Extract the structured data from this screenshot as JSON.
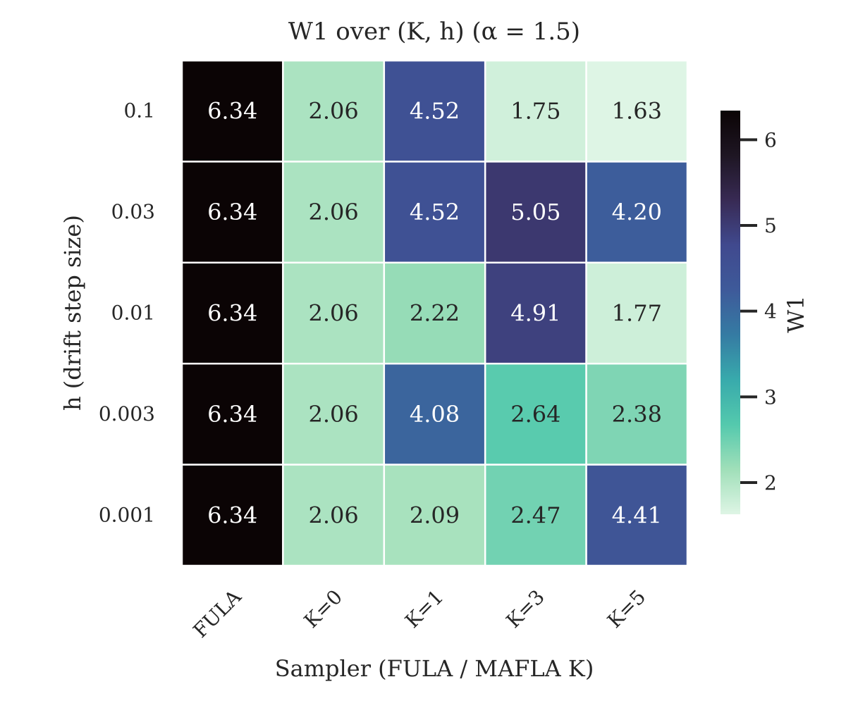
{
  "chart_data": {
    "type": "heatmap",
    "title": "W1 over (K, h) (α = 1.5)",
    "xlabel": "Sampler (FULA / MAFLA K)",
    "ylabel": "h (drift step size)",
    "x_categories": [
      "FULA",
      "K=0",
      "K=1",
      "K=3",
      "K=5"
    ],
    "y_categories": [
      "0.1",
      "0.03",
      "0.01",
      "0.003",
      "0.001"
    ],
    "values": [
      [
        6.34,
        2.06,
        4.52,
        1.75,
        1.63
      ],
      [
        6.34,
        2.06,
        4.52,
        5.05,
        4.2
      ],
      [
        6.34,
        2.06,
        2.22,
        4.91,
        1.77
      ],
      [
        6.34,
        2.06,
        4.08,
        2.64,
        2.38
      ],
      [
        6.34,
        2.06,
        2.09,
        2.47,
        4.41
      ]
    ],
    "labels": [
      [
        "6.34",
        "2.06",
        "4.52",
        "1.75",
        "1.63"
      ],
      [
        "6.34",
        "2.06",
        "4.52",
        "5.05",
        "4.20"
      ],
      [
        "6.34",
        "2.06",
        "2.22",
        "4.91",
        "1.77"
      ],
      [
        "6.34",
        "2.06",
        "4.08",
        "2.64",
        "2.38"
      ],
      [
        "6.34",
        "2.06",
        "2.09",
        "2.47",
        "4.41"
      ]
    ],
    "colorbar": {
      "label": "W1",
      "vmin": 1.63,
      "vmax": 6.34,
      "ticks": [
        2,
        3,
        4,
        5,
        6
      ],
      "tick_labels": [
        "2",
        "3",
        "4",
        "5",
        "6"
      ]
    },
    "colormap": "mako_r",
    "colormap_stops": [
      "#def5e5",
      "#a0dfb9",
      "#54c9ad",
      "#38aaac",
      "#357ba3",
      "#3e5a9a",
      "#40498e",
      "#382a54",
      "#1e1623",
      "#0b0405"
    ]
  }
}
